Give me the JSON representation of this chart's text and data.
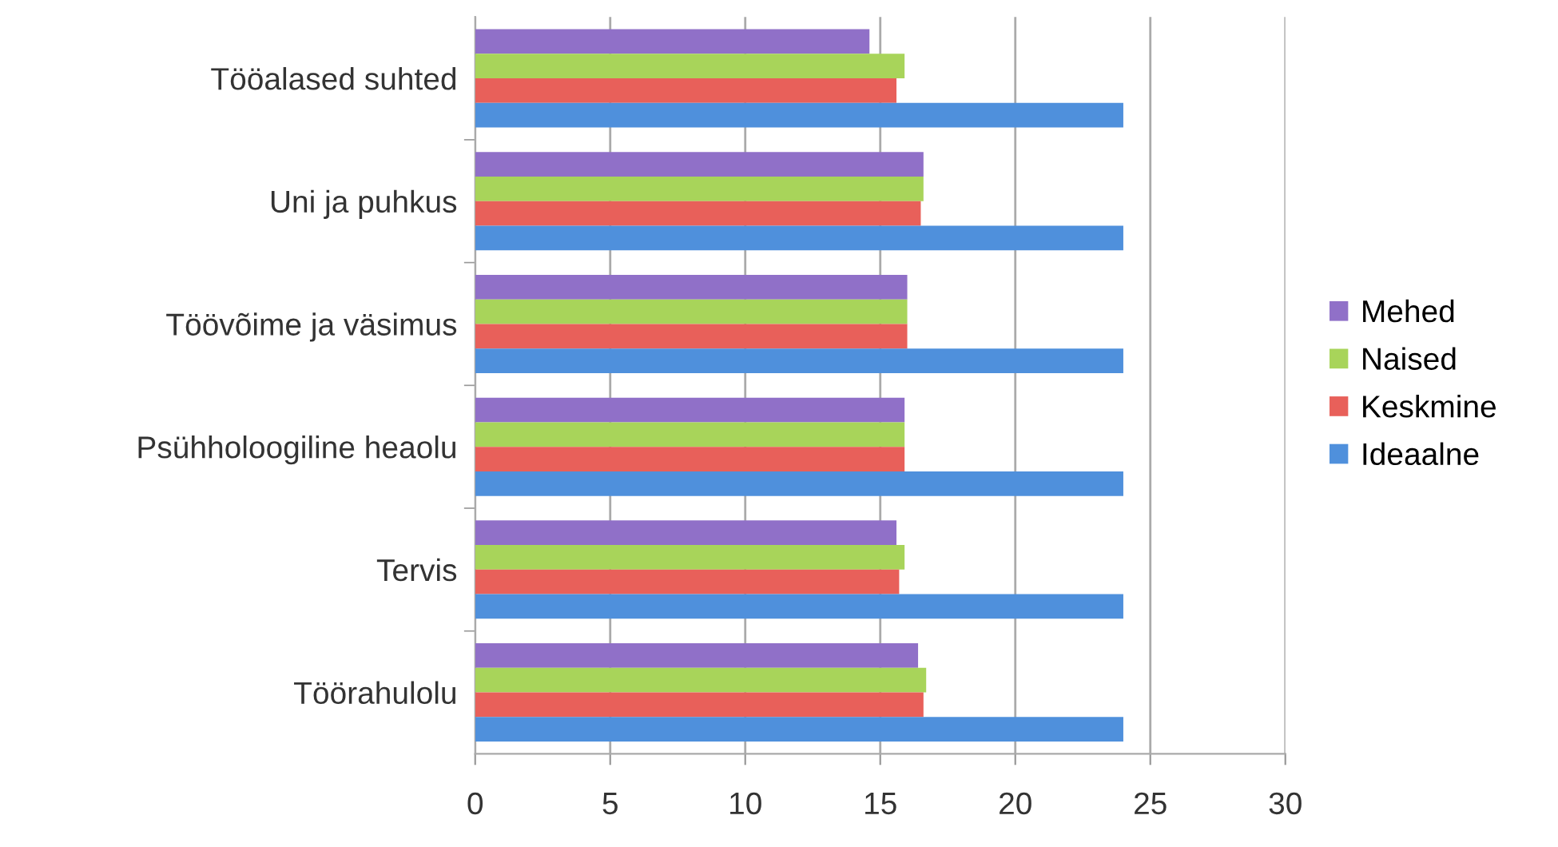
{
  "chart_data": {
    "type": "bar",
    "orientation": "horizontal",
    "categories": [
      "Tööalased suhted",
      "Uni ja puhkus",
      "Töövõime ja väsimus",
      "Psühholoogiline heaolu",
      "Tervis",
      "Töörahulolu"
    ],
    "series": [
      {
        "name": "Mehed",
        "color": "#9070c8",
        "values": [
          14.6,
          16.6,
          16.0,
          15.9,
          15.6,
          16.4
        ]
      },
      {
        "name": "Naised",
        "color": "#a8d45a",
        "values": [
          15.9,
          16.6,
          16.0,
          15.9,
          15.9,
          16.7
        ]
      },
      {
        "name": "Keskmine",
        "color": "#e8605a",
        "values": [
          15.6,
          16.5,
          16.0,
          15.9,
          15.7,
          16.6
        ]
      },
      {
        "name": "Ideaalne",
        "color": "#4f90dc",
        "values": [
          24,
          24,
          24,
          24,
          24,
          24
        ]
      }
    ],
    "xlim": [
      0,
      30
    ],
    "xticks": [
      0,
      5,
      10,
      15,
      20,
      25,
      30
    ],
    "grid": "x",
    "legend": "right"
  }
}
